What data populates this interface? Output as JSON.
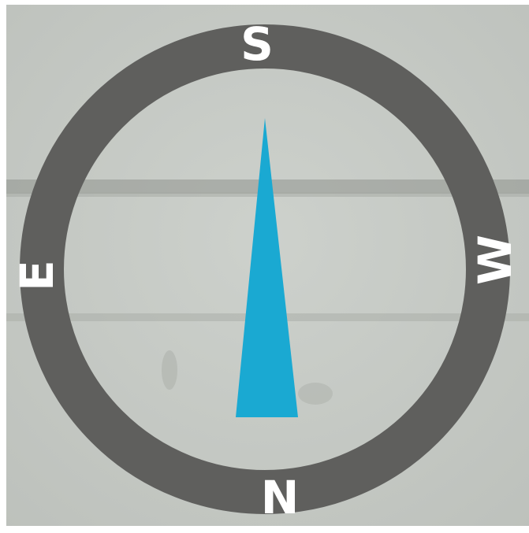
{
  "compass": {
    "labels": {
      "top": "S",
      "bottom": "N",
      "left": "E",
      "right": "W"
    },
    "ring_color": "#5f5f5d",
    "needle_color": "#1aa9d2",
    "label_color": "#ffffff",
    "background_color": "#c7cbc6"
  }
}
